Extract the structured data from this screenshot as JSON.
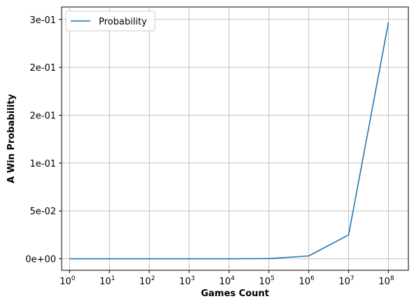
{
  "chart_data": {
    "type": "line",
    "title": "",
    "xlabel": "Games Count",
    "ylabel": "A Win Probability",
    "xscale": "log",
    "x_tick_bases": [
      "10",
      "10",
      "10",
      "10",
      "10",
      "10",
      "10",
      "10",
      "10"
    ],
    "x_tick_exponents": [
      "0",
      "1",
      "2",
      "3",
      "4",
      "5",
      "6",
      "7",
      "8"
    ],
    "x_tick_values": [
      1,
      10,
      100,
      1000,
      10000,
      100000,
      1000000,
      10000000,
      100000000
    ],
    "y_tick_labels": [
      "0e+00",
      "5e-02",
      "1e-01",
      "2e-01",
      "2e-01",
      "3e-01"
    ],
    "y_tick_values": [
      0,
      0.05,
      0.1,
      0.15,
      0.2,
      0.25
    ],
    "grid": true,
    "legend_position": "top-left",
    "series": [
      {
        "name": "Probability",
        "color": "#1f77b4",
        "x": [
          1,
          10,
          100,
          1000,
          10000,
          100000,
          1000000,
          10000000,
          100000000
        ],
        "y": [
          0.0,
          0.0,
          0.0,
          0.0,
          0.0,
          0.0002,
          0.003,
          0.025,
          0.247
        ]
      }
    ]
  }
}
